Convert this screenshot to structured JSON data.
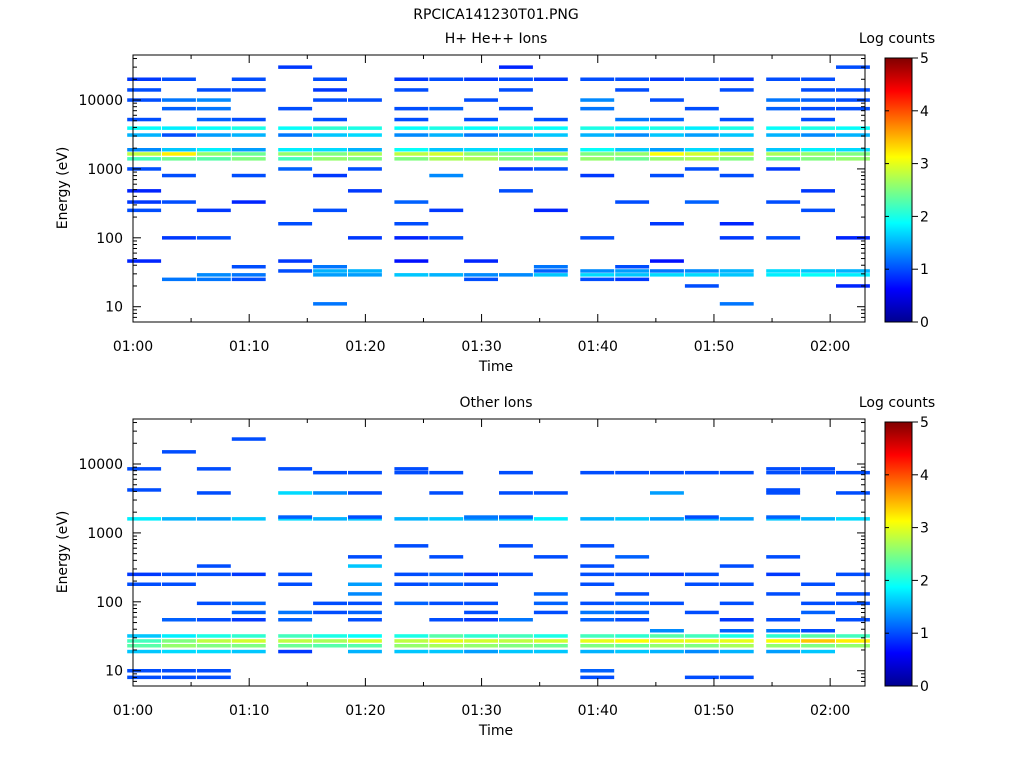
{
  "figure": {
    "title": "RPCICA141230T01.PNG"
  },
  "colorscale": {
    "stops": [
      "#00008f",
      "#0000ff",
      "#0080ff",
      "#00ffff",
      "#80ff80",
      "#ffff00",
      "#ff8000",
      "#ff0000",
      "#800000"
    ]
  },
  "chart_data": [
    {
      "type": "heatmap",
      "title": "H+ He++ Ions",
      "xlabel": "Time",
      "ylabel": "Energy (eV)",
      "y_scale": "log",
      "xlim": [
        "01:00",
        "02:03"
      ],
      "ylim": [
        6,
        45000
      ],
      "x_ticks": [
        "01:00",
        "01:10",
        "01:20",
        "01:30",
        "01:40",
        "01:50",
        "02:00"
      ],
      "y_ticks": [
        {
          "label": "10",
          "value": 10
        },
        {
          "label": "100",
          "value": 100
        },
        {
          "label": "1000",
          "value": 1000
        },
        {
          "label": "10000",
          "value": 10000
        }
      ],
      "colorbar": {
        "label": "Log counts",
        "range": [
          0,
          5
        ],
        "ticks": [
          "0",
          "1",
          "2",
          "3",
          "4",
          "5"
        ]
      },
      "time_bins": [
        "01:01",
        "01:04",
        "01:07",
        "01:10",
        "01:14",
        "01:17",
        "01:20",
        "01:24",
        "01:27",
        "01:30",
        "01:33",
        "01:36",
        "01:40",
        "01:43",
        "01:46",
        "01:49",
        "01:52",
        "01:56",
        "01:59",
        "02:02"
      ],
      "energy_levels": [
        11,
        20,
        25,
        29,
        33,
        38,
        46,
        100,
        160,
        250,
        330,
        480,
        800,
        1000,
        1400,
        1650,
        1900,
        3100,
        3900,
        5200,
        7500,
        10000,
        14000,
        20000,
        30000
      ],
      "values": [
        [
          0,
          0,
          0,
          0,
          0,
          1.2,
          0,
          0,
          0,
          0,
          0,
          0,
          0,
          0,
          0,
          0,
          1.2,
          0,
          0,
          0
        ],
        [
          0,
          0,
          0,
          0,
          0,
          0,
          0,
          0,
          0,
          0,
          0,
          0,
          0,
          0,
          0,
          1.0,
          0,
          0,
          0,
          0.8
        ],
        [
          0,
          1.2,
          1.2,
          1.0,
          0,
          0,
          0,
          0,
          0,
          1.0,
          0,
          0,
          1.0,
          0.9,
          0,
          0,
          0,
          0,
          0,
          0
        ],
        [
          0,
          0,
          1.3,
          1.2,
          0,
          1.4,
          1.4,
          1.6,
          1.5,
          1.3,
          1.3,
          1.6,
          1.7,
          1.6,
          1.7,
          1.7,
          1.6,
          1.8,
          1.9,
          1.8
        ],
        [
          0,
          0,
          0,
          0,
          1.0,
          1.5,
          1.5,
          0,
          0,
          0,
          0,
          1.1,
          1.3,
          1.4,
          1.2,
          1.3,
          1.5,
          1.7,
          1.6,
          1.5
        ],
        [
          0,
          0,
          0,
          1.0,
          0,
          1.2,
          0,
          0,
          0,
          0,
          0,
          1.2,
          0,
          1.0,
          0,
          0,
          0,
          0,
          0,
          0
        ],
        [
          0.8,
          0,
          0,
          0,
          0.9,
          0,
          0,
          0.7,
          0,
          0.8,
          0,
          0,
          0,
          0,
          0.7,
          0,
          0,
          0,
          0,
          0
        ],
        [
          0,
          0.9,
          1.0,
          0,
          0,
          0,
          0.9,
          0.8,
          1.0,
          0,
          0,
          0,
          1.0,
          0,
          0,
          0,
          0.9,
          1.0,
          0,
          0.8
        ],
        [
          0,
          0,
          0,
          0,
          1.0,
          0,
          0,
          1.0,
          0,
          0,
          0,
          0,
          0,
          0,
          0.9,
          0,
          0.8,
          0,
          0,
          0
        ],
        [
          1.0,
          0,
          0.9,
          0,
          0,
          1.0,
          0,
          0,
          0.9,
          0,
          0,
          0.8,
          0,
          0,
          0,
          0,
          0,
          0,
          1.0,
          0
        ],
        [
          0.9,
          1.0,
          0,
          0.8,
          0,
          0,
          0,
          1.1,
          0,
          0,
          0,
          0,
          0,
          1.0,
          0,
          1.1,
          0,
          1.0,
          0,
          0
        ],
        [
          0.8,
          0,
          0,
          0,
          0,
          0,
          0.9,
          0,
          0,
          0,
          1.0,
          0,
          0,
          0,
          0,
          0,
          0,
          0,
          0.9,
          0
        ],
        [
          0,
          1.0,
          0,
          1.0,
          0,
          0.9,
          0,
          0,
          1.3,
          0,
          0,
          0,
          0.9,
          0,
          1.0,
          0,
          1.0,
          0,
          0,
          0
        ],
        [
          1.0,
          0,
          0,
          0,
          1.1,
          0,
          1.0,
          0,
          0,
          0,
          0.9,
          1.0,
          0,
          0,
          0,
          1.0,
          0,
          0.9,
          0,
          0
        ],
        [
          2.2,
          2.4,
          2.3,
          2.5,
          2.2,
          2.6,
          2.5,
          2.5,
          2.7,
          2.7,
          2.5,
          2.3,
          2.6,
          2.4,
          2.6,
          2.7,
          2.5,
          2.4,
          2.5,
          2.6
        ],
        [
          2.8,
          3.2,
          2.6,
          2.4,
          2.6,
          2.5,
          2.7,
          2.8,
          2.9,
          2.6,
          2.5,
          2.7,
          2.5,
          2.6,
          3.1,
          2.9,
          2.8,
          2.7,
          2.6,
          2.5
        ],
        [
          1.3,
          1.6,
          1.8,
          1.4,
          1.8,
          1.7,
          1.5,
          1.9,
          1.6,
          1.7,
          1.8,
          1.5,
          1.9,
          1.6,
          1.4,
          1.7,
          1.5,
          1.6,
          1.8,
          1.7
        ],
        [
          1.5,
          1.0,
          1.4,
          1.5,
          1.2,
          1.6,
          1.7,
          1.3,
          1.5,
          1.2,
          1.4,
          1.6,
          1.5,
          1.3,
          1.6,
          1.4,
          1.6,
          1.5,
          1.3,
          1.5
        ],
        [
          1.9,
          1.8,
          1.9,
          2.0,
          1.9,
          2.1,
          2.0,
          1.9,
          2.0,
          1.9,
          2.0,
          1.9,
          2.0,
          1.9,
          2.0,
          1.8,
          2.0,
          1.9,
          2.0,
          1.9
        ],
        [
          1.0,
          0,
          1.1,
          1.0,
          0,
          1.0,
          0,
          1.0,
          0,
          1.0,
          0,
          1.0,
          0,
          1.2,
          1.1,
          0,
          1.0,
          0,
          1.0,
          0
        ],
        [
          0,
          1.1,
          1.2,
          0,
          1.0,
          0,
          0,
          1.0,
          1.1,
          0,
          1.0,
          0,
          1.2,
          0,
          0,
          1.0,
          0,
          1.1,
          1.0,
          1.0
        ],
        [
          1.0,
          1.2,
          1.3,
          0,
          0,
          1.0,
          1.0,
          0,
          0,
          1.0,
          0,
          0,
          1.3,
          0,
          1.0,
          0,
          0,
          1.2,
          1.1,
          1.0
        ],
        [
          1.0,
          0,
          1.0,
          1.0,
          0,
          0.9,
          0,
          1.0,
          0,
          0,
          1.0,
          0,
          0,
          1.0,
          0,
          0,
          1.0,
          0,
          1.0,
          1.0
        ],
        [
          0.9,
          1.0,
          0,
          1.0,
          0,
          1.0,
          0,
          0.9,
          1.0,
          0.9,
          1.0,
          0.9,
          1.0,
          1.0,
          0.9,
          1.0,
          0.9,
          1.0,
          1.0,
          0
        ],
        [
          0,
          0,
          0,
          0,
          0.9,
          0,
          0,
          0,
          0,
          0,
          0.8,
          0,
          0,
          0,
          0,
          0,
          0,
          0,
          0,
          1.0
        ]
      ]
    },
    {
      "type": "heatmap",
      "title": "Other Ions",
      "xlabel": "Time",
      "ylabel": "Energy (eV)",
      "y_scale": "log",
      "xlim": [
        "01:00",
        "02:03"
      ],
      "ylim": [
        6,
        45000
      ],
      "x_ticks": [
        "01:00",
        "01:10",
        "01:20",
        "01:30",
        "01:40",
        "01:50",
        "02:00"
      ],
      "y_ticks": [
        {
          "label": "10",
          "value": 10
        },
        {
          "label": "100",
          "value": 100
        },
        {
          "label": "1000",
          "value": 1000
        },
        {
          "label": "10000",
          "value": 10000
        }
      ],
      "colorbar": {
        "label": "Log counts",
        "range": [
          0,
          5
        ],
        "ticks": [
          "0",
          "1",
          "2",
          "3",
          "4",
          "5"
        ]
      },
      "time_bins": [
        "01:01",
        "01:04",
        "01:07",
        "01:10",
        "01:14",
        "01:17",
        "01:20",
        "01:24",
        "01:27",
        "01:30",
        "01:33",
        "01:36",
        "01:40",
        "01:43",
        "01:46",
        "01:49",
        "01:52",
        "01:56",
        "01:59",
        "02:02"
      ],
      "energy_levels": [
        8,
        10,
        13,
        19,
        23,
        27,
        32,
        38,
        55,
        70,
        95,
        130,
        180,
        250,
        330,
        450,
        650,
        1600,
        1700,
        1900,
        3800,
        4200,
        7500,
        8500,
        15000,
        23000
      ],
      "values": [
        [
          1.0,
          1.0,
          1.0,
          0,
          0,
          0,
          0,
          0,
          0,
          0,
          0,
          0,
          1.0,
          0,
          0,
          1.0,
          1.0,
          0,
          0,
          0
        ],
        [
          1.0,
          1.0,
          1.0,
          0,
          0,
          0,
          0,
          0,
          0,
          0,
          0,
          0,
          1.1,
          0,
          0,
          0,
          0,
          0,
          0,
          0
        ],
        [
          0,
          0,
          0,
          0,
          0,
          0,
          0,
          0,
          0,
          0,
          0,
          0,
          0,
          0,
          0,
          0,
          0,
          0,
          0,
          0
        ],
        [
          1.6,
          1.7,
          1.7,
          1.6,
          0.9,
          0,
          1.5,
          1.6,
          1.6,
          1.4,
          1.6,
          1.6,
          1.5,
          1.6,
          1.5,
          1.3,
          1.5,
          1.4,
          1.6,
          0
        ],
        [
          2.3,
          2.6,
          2.5,
          2.5,
          2.4,
          2.3,
          2.3,
          2.6,
          2.7,
          2.6,
          2.5,
          2.4,
          2.5,
          2.4,
          2.6,
          2.5,
          2.7,
          2.6,
          2.5,
          2.6
        ],
        [
          2.2,
          2.5,
          2.8,
          2.9,
          2.8,
          2.7,
          2.9,
          2.8,
          3.0,
          2.9,
          2.8,
          2.9,
          3.0,
          3.1,
          3.0,
          3.0,
          3.0,
          3.1,
          3.4,
          3.2
        ],
        [
          1.6,
          1.8,
          2.0,
          2.1,
          2.2,
          2.0,
          1.9,
          2.0,
          2.3,
          2.1,
          2.2,
          2.0,
          2.2,
          2.1,
          2.3,
          2.2,
          2.0,
          2.1,
          2.3,
          2.2
        ],
        [
          0,
          0,
          0,
          0,
          0,
          0,
          0,
          0,
          0,
          0,
          0,
          0,
          0,
          0,
          1.3,
          0,
          1.1,
          1.2,
          1.0,
          0
        ],
        [
          0,
          1.1,
          1.0,
          0.9,
          1.1,
          0,
          1.0,
          0,
          1.0,
          0.9,
          1.2,
          0,
          1.1,
          1.0,
          0,
          0,
          0.9,
          1.0,
          0,
          1.0
        ],
        [
          0,
          0,
          0,
          1.1,
          1.2,
          1.0,
          1.1,
          0,
          0,
          1.0,
          0,
          1.0,
          1.2,
          1.1,
          0,
          1.0,
          0,
          0,
          1.1,
          0
        ],
        [
          0,
          0,
          1.0,
          1.1,
          0,
          1.0,
          1.0,
          1.1,
          1.0,
          1.0,
          0,
          1.1,
          1.0,
          1.1,
          1.0,
          0,
          1.0,
          0,
          1.0,
          1.0
        ],
        [
          0,
          0,
          0,
          0,
          0,
          0,
          1.3,
          0,
          0,
          0,
          0,
          1.1,
          0,
          1.0,
          0,
          0,
          0,
          1.0,
          0,
          1.0
        ],
        [
          1.0,
          1.0,
          0,
          0,
          1.0,
          0,
          1.4,
          1.0,
          1.1,
          1.0,
          0,
          0,
          1.0,
          0,
          0,
          1.0,
          1.0,
          0,
          1.0,
          0
        ],
        [
          0.9,
          1.0,
          1.0,
          0.9,
          1.0,
          0,
          0,
          1.0,
          1.1,
          0.9,
          1.0,
          0,
          1.0,
          1.0,
          0.9,
          1.0,
          0,
          0.9,
          0,
          1.0
        ],
        [
          0,
          0,
          1.0,
          0,
          0,
          0,
          1.6,
          0,
          0,
          0,
          0,
          0,
          1.0,
          0,
          0,
          0,
          1.0,
          0,
          0,
          0
        ],
        [
          0,
          0,
          0,
          0,
          0,
          0,
          1.0,
          0,
          1.0,
          0,
          0,
          1.0,
          0,
          1.1,
          0,
          0,
          0,
          1.0,
          0,
          0
        ],
        [
          0,
          0,
          0,
          0,
          0,
          0,
          0,
          1.0,
          0,
          0,
          1.0,
          0,
          1.0,
          0,
          0,
          0,
          0,
          0,
          0,
          0
        ],
        [
          1.8,
          1.5,
          1.4,
          1.6,
          1.7,
          1.5,
          1.6,
          1.5,
          1.6,
          1.4,
          1.6,
          1.8,
          1.5,
          1.6,
          1.4,
          1.5,
          1.4,
          1.6,
          1.5,
          1.7
        ],
        [
          0,
          0,
          0,
          0,
          1.1,
          0,
          1.0,
          0,
          0,
          1.2,
          1.1,
          0,
          0,
          0,
          0,
          1.0,
          0,
          1.1,
          0,
          0
        ],
        [
          0,
          0,
          0,
          0,
          0,
          0,
          0,
          0,
          0,
          0,
          0,
          0,
          0,
          0,
          0,
          0,
          0,
          0,
          0,
          0
        ],
        [
          0,
          0,
          1.0,
          0,
          1.7,
          1.3,
          1.0,
          0,
          1.0,
          0,
          1.0,
          1.0,
          0,
          0,
          1.4,
          0,
          0,
          1.0,
          0,
          1.0
        ],
        [
          1.0,
          0,
          0,
          0,
          0,
          0,
          0,
          0,
          0,
          0,
          0,
          0,
          0,
          0,
          0,
          0,
          0,
          1.0,
          0,
          0
        ],
        [
          0,
          0,
          0,
          0,
          0,
          1.0,
          1.0,
          1.0,
          1.0,
          0,
          1.0,
          0,
          1.0,
          1.0,
          1.0,
          1.0,
          1.0,
          1.0,
          1.0,
          1.0
        ],
        [
          1.0,
          0,
          1.0,
          0,
          1.0,
          0,
          0,
          1.0,
          0,
          0,
          0,
          0,
          0,
          0,
          0,
          0,
          0,
          1.0,
          1.0,
          0
        ],
        [
          0,
          1.0,
          0,
          0,
          0,
          0,
          0,
          0,
          0,
          0,
          0,
          0,
          0,
          0,
          0,
          0,
          0,
          0,
          0,
          0
        ],
        [
          0,
          0,
          0,
          1.0,
          0,
          0,
          0,
          0,
          0,
          0,
          0,
          0,
          0,
          0,
          0,
          0,
          0,
          0,
          0,
          0
        ]
      ]
    }
  ]
}
